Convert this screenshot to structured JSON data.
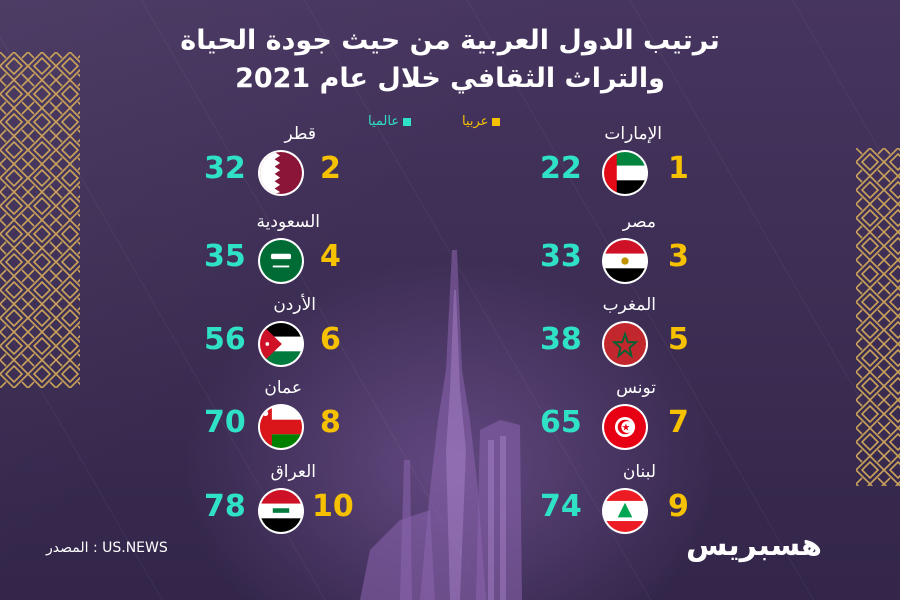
{
  "title": {
    "line1": "ترتيب الدول العربية من حيث جودة الحياة",
    "line2": "والتراث الثقافي خلال عام 2021"
  },
  "legend": {
    "arab": "عربيا",
    "world": "عالميا",
    "arab_color": "#f5c100",
    "world_color": "#2fe1c5"
  },
  "left_column": [
    {
      "country": "قطر",
      "arab_rank": "2",
      "world_rank": "32",
      "flag": "qatar-flag-icon"
    },
    {
      "country": "السعودية",
      "arab_rank": "4",
      "world_rank": "35",
      "flag": "saudi-flag-icon"
    },
    {
      "country": "الأردن",
      "arab_rank": "6",
      "world_rank": "56",
      "flag": "jordan-flag-icon"
    },
    {
      "country": "عمان",
      "arab_rank": "8",
      "world_rank": "70",
      "flag": "oman-flag-icon"
    },
    {
      "country": "العراق",
      "arab_rank": "10",
      "world_rank": "78",
      "flag": "iraq-flag-icon"
    }
  ],
  "right_column": [
    {
      "country": "الإمارات",
      "arab_rank": "1",
      "world_rank": "22",
      "flag": "uae-flag-icon"
    },
    {
      "country": "مصر",
      "arab_rank": "3",
      "world_rank": "33",
      "flag": "egypt-flag-icon"
    },
    {
      "country": "المغرب",
      "arab_rank": "5",
      "world_rank": "38",
      "flag": "morocco-flag-icon"
    },
    {
      "country": "تونس",
      "arab_rank": "7",
      "world_rank": "65",
      "flag": "tunisia-flag-icon"
    },
    {
      "country": "لبنان",
      "arab_rank": "9",
      "world_rank": "74",
      "flag": "lebanon-flag-icon"
    }
  ],
  "source": "المصدر : US.NEWS",
  "logo": "هسبريس"
}
